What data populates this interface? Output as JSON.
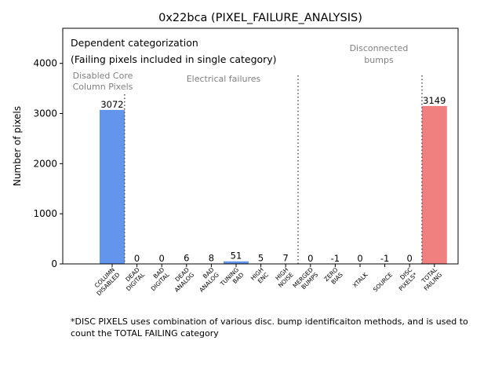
{
  "chart_data": {
    "type": "bar",
    "title": "0x22bca (PIXEL_FAILURE_ANALYSIS)",
    "xlabel": "",
    "ylabel": "Number of pixels",
    "ylim": [
      0,
      4700
    ],
    "yticks": [
      0,
      1000,
      2000,
      3000,
      4000
    ],
    "categories": [
      "COLUMN\nDISABLED",
      "DEAD\nDIGITAL",
      "BAD\nDIGITAL",
      "DEAD\nANALOG",
      "BAD\nANALOG",
      "TUNING\nBAD",
      "HIGH\nENC",
      "HIGH\nNOISE",
      "MERGED\nBUMPS",
      "ZERO\nBIAS",
      "XTALK",
      "SOURCE",
      "DISC\nPIXELS*",
      "TOTAL\nFAILING"
    ],
    "values": [
      3072,
      0,
      0,
      6,
      8,
      51,
      5,
      7,
      0,
      -1,
      0,
      -1,
      0,
      3149
    ],
    "value_labels": [
      "3072",
      "0",
      "0",
      "6",
      "8",
      "51",
      "5",
      "7",
      "0",
      "-1",
      "0",
      "-1",
      "0",
      "3149"
    ],
    "colors": [
      "#6495ED",
      "#6495ED",
      "#6495ED",
      "#6495ED",
      "#6495ED",
      "#6495ED",
      "#6495ED",
      "#6495ED",
      "#6495ED",
      "#6495ED",
      "#6495ED",
      "#6495ED",
      "#6495ED",
      "#F08080"
    ],
    "annotations": {
      "mode_line1": "Dependent categorization",
      "mode_line2": "(Failing pixels included in single category)",
      "group_core_line1": "Disabled Core",
      "group_core_line2": "Column Pixels",
      "group_electrical": "Electrical failures",
      "group_disc_line1": "Disconnected",
      "group_disc_line2": "bumps"
    },
    "grid": false,
    "legend": "none"
  },
  "footnote": "*DISC PIXELS uses combination of various disc. bump identificaiton methods, and is used to count the TOTAL FAILING category"
}
